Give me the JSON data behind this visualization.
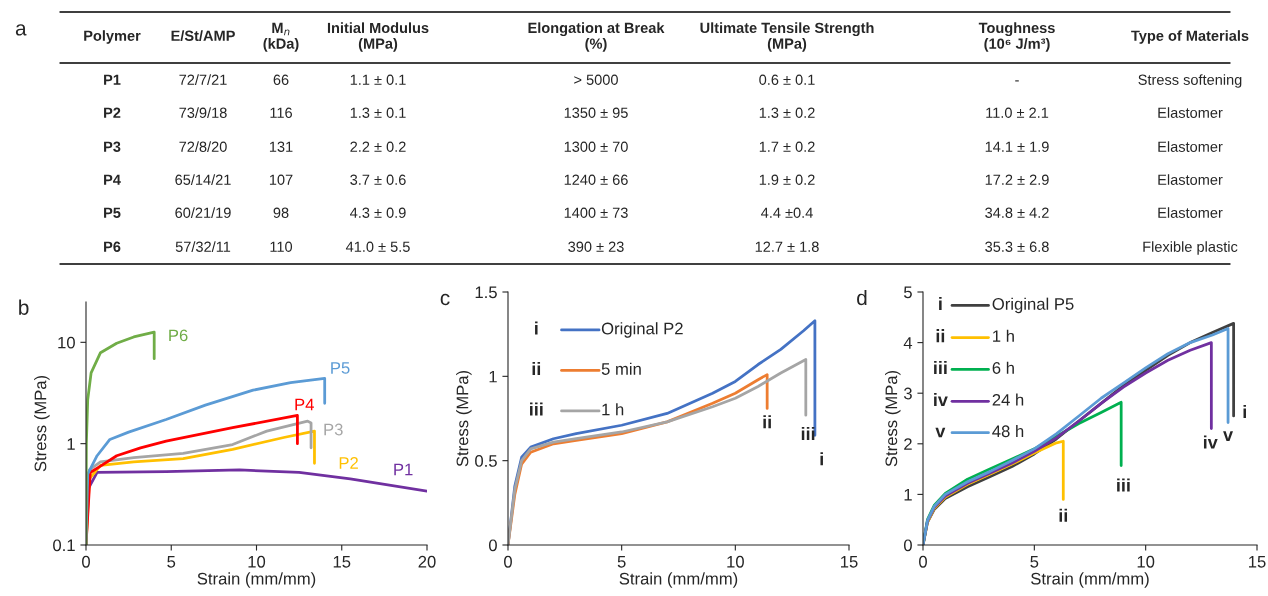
{
  "chart_data": [
    {
      "type": "other",
      "title": "a",
      "categories": [
        "Polymer",
        "E/St/AMP",
        "M$_{n}$\n(kDa)",
        "Initial Modulus\n(MPa)",
        "Elongation at Break\n(%)",
        "Ultimate Tensile Strength\n(MPa)",
        "Toughness\n(10⁶ J/m³)",
        "Type of Materials"
      ],
      "cell_labels": [
        [
          "P1",
          "72/7/21",
          "66",
          "1.1 ± 0.1",
          "> 5000",
          "0.6 ± 0.1",
          "-",
          "Stress softening"
        ],
        [
          "P2",
          "73/9/18",
          "116",
          "1.3 ± 0.1",
          "1350 ± 95",
          "1.3 ± 0.2",
          "11.0 ± 2.1",
          "Elastomer"
        ],
        [
          "P3",
          "72/8/20",
          "131",
          "2.2 ± 0.2",
          "1300 ± 70",
          "1.7 ± 0.2",
          "14.1 ± 1.9",
          "Elastomer"
        ],
        [
          "P4",
          "65/14/21",
          "107",
          "3.7 ± 0.6",
          "1240 ± 66",
          "1.9 ± 0.2",
          "17.2 ± 2.9",
          "Elastomer"
        ],
        [
          "P5",
          "60/21/19",
          "98",
          "4.3 ± 0.9",
          "1400 ± 73",
          "4.4 ±0.4",
          "34.8 ± 4.2",
          "Elastomer"
        ],
        [
          "P6",
          "57/32/11",
          "110",
          "41.0 ± 5.5",
          "390 ± 23",
          "12.7 ± 1.8",
          "35.3 ± 6.8",
          "Flexible plastic"
        ]
      ]
    },
    {
      "type": "line",
      "title": "b",
      "xlabel": "Strain (mm/mm)",
      "ylabel": "Stress (MPa)",
      "log": "y",
      "xlim": [
        0,
        20
      ],
      "xticks": [
        0,
        5,
        10,
        15,
        20
      ],
      "ylim": [
        0.1,
        25
      ],
      "yticks": [
        0.1,
        1,
        10
      ],
      "series": [
        {
          "name": "P1",
          "color": "#7030a0",
          "x": [
            0,
            0.1,
            0.65,
            4.7,
            9.0,
            12.5,
            15.5,
            20
          ],
          "values": [
            0.1,
            0.35,
            0.52,
            0.53,
            0.55,
            0.52,
            0.45,
            0.34
          ]
        },
        {
          "name": "P2",
          "color": "#ffc000",
          "x": [
            0,
            0.2,
            0.85,
            2.8,
            5.7,
            8.6,
            11.6,
            13.4,
            13.4
          ],
          "values": [
            0.1,
            0.45,
            0.61,
            0.66,
            0.71,
            0.88,
            1.15,
            1.33,
            0.64
          ]
        },
        {
          "name": "P3",
          "color": "#a5a5a5",
          "x": [
            0,
            0.2,
            0.85,
            2.8,
            5.7,
            8.6,
            10.6,
            13.0,
            13.2,
            13.2
          ],
          "values": [
            0.1,
            0.55,
            0.66,
            0.73,
            0.8,
            0.98,
            1.33,
            1.67,
            1.6,
            0.91
          ]
        },
        {
          "name": "P4",
          "color": "#ff0000",
          "x": [
            0,
            0.25,
            0.85,
            1.8,
            3.2,
            4.7,
            8.6,
            12.4,
            12.4
          ],
          "values": [
            0.1,
            0.52,
            0.6,
            0.76,
            0.91,
            1.06,
            1.44,
            1.9,
            1.0
          ]
        },
        {
          "name": "P5",
          "color": "#5b9bd5",
          "x": [
            0,
            0.1,
            0.65,
            1.4,
            2.5,
            4.7,
            7,
            9.8,
            12,
            14,
            14
          ],
          "values": [
            0.1,
            0.5,
            0.76,
            1.1,
            1.3,
            1.73,
            2.4,
            3.37,
            4.0,
            4.4,
            2.5
          ]
        },
        {
          "name": "P6",
          "color": "#70ad47",
          "x": [
            0,
            0.02,
            0.1,
            0.3,
            0.85,
            1.8,
            2.8,
            4.0,
            4.0
          ],
          "values": [
            0.1,
            1,
            2.7,
            5,
            7.9,
            9.8,
            11.3,
            12.6,
            6.9
          ]
        }
      ]
    },
    {
      "type": "line",
      "title": "c",
      "xlabel": "Strain (mm/mm)",
      "ylabel": "Stress (MPa)",
      "legend": "top left",
      "xlim": [
        0,
        15
      ],
      "xticks": [
        0,
        5,
        10,
        15
      ],
      "ylim": [
        0,
        1.5
      ],
      "yticks": [
        0,
        0.5,
        1,
        1.5
      ],
      "annotations": [
        "i",
        "ii",
        "iii",
        "i",
        "ii",
        "iii"
      ],
      "series": [
        {
          "name": "Original P2",
          "color": "#4472c4",
          "x": [
            0,
            0.3,
            0.6,
            1,
            2,
            3,
            5,
            7,
            9,
            10,
            11,
            12,
            13,
            13.5,
            13.5
          ],
          "values": [
            0,
            0.35,
            0.52,
            0.58,
            0.63,
            0.66,
            0.71,
            0.78,
            0.9,
            0.97,
            1.07,
            1.16,
            1.27,
            1.33,
            0.65
          ]
        },
        {
          "name": "5 min",
          "color": "#ed7d31",
          "x": [
            0,
            0.3,
            0.6,
            1,
            2,
            3,
            5,
            7,
            9,
            10,
            11,
            11.4,
            11.4
          ],
          "values": [
            0,
            0.3,
            0.48,
            0.55,
            0.6,
            0.62,
            0.66,
            0.73,
            0.84,
            0.9,
            0.98,
            1.01,
            0.81
          ]
        },
        {
          "name": "1 h",
          "color": "#a5a5a5",
          "x": [
            0,
            0.3,
            0.6,
            1,
            2,
            3,
            5,
            7,
            9,
            10,
            11,
            12,
            13.1,
            13.1
          ],
          "values": [
            0,
            0.33,
            0.5,
            0.57,
            0.61,
            0.63,
            0.67,
            0.73,
            0.82,
            0.87,
            0.94,
            1.02,
            1.1,
            0.77
          ]
        }
      ]
    },
    {
      "type": "line",
      "title": "d",
      "xlabel": "Strain (mm/mm)",
      "ylabel": "Stress (MPa)",
      "legend": "top left",
      "xlim": [
        0,
        15
      ],
      "xticks": [
        0,
        5,
        10,
        15
      ],
      "ylim": [
        0,
        5
      ],
      "yticks": [
        0,
        1,
        2,
        3,
        4,
        5
      ],
      "annotations": [
        "i",
        "ii",
        "iii",
        "iv",
        "v",
        "i",
        "ii",
        "iii",
        "iv",
        "v"
      ],
      "series": [
        {
          "name": "Original P5",
          "color": "#404040",
          "x": [
            0,
            0.2,
            0.5,
            1,
            2,
            3,
            4,
            5,
            6,
            7,
            8,
            9,
            10,
            11,
            12,
            13,
            13.95,
            13.95
          ],
          "values": [
            0,
            0.45,
            0.7,
            0.92,
            1.15,
            1.35,
            1.55,
            1.8,
            2.1,
            2.45,
            2.8,
            3.15,
            3.45,
            3.75,
            4.0,
            4.2,
            4.38,
            2.55
          ]
        },
        {
          "name": "1 h",
          "color": "#ffc000",
          "x": [
            0,
            0.2,
            0.5,
            1,
            2,
            3,
            4,
            5,
            6,
            6.3,
            6.3
          ],
          "values": [
            0,
            0.45,
            0.72,
            0.95,
            1.2,
            1.4,
            1.6,
            1.82,
            2.02,
            2.05,
            0.9
          ]
        },
        {
          "name": "6 h",
          "color": "#00b050",
          "x": [
            0,
            0.2,
            0.5,
            1,
            2,
            3,
            4,
            5,
            6,
            7,
            8,
            8.9,
            8.9
          ],
          "values": [
            0,
            0.5,
            0.78,
            1.02,
            1.3,
            1.5,
            1.7,
            1.9,
            2.15,
            2.4,
            2.62,
            2.82,
            1.57
          ]
        },
        {
          "name": "24 h",
          "color": "#7030a0",
          "x": [
            0,
            0.2,
            0.5,
            1,
            2,
            3,
            4,
            5,
            6,
            7,
            8,
            9,
            10,
            11,
            12,
            12.95,
            12.95
          ],
          "values": [
            0,
            0.47,
            0.74,
            0.97,
            1.22,
            1.42,
            1.62,
            1.85,
            2.12,
            2.45,
            2.8,
            3.12,
            3.4,
            3.65,
            3.85,
            4.0,
            2.3
          ]
        },
        {
          "name": "48 h",
          "color": "#5b9bd5",
          "x": [
            0,
            0.2,
            0.5,
            1,
            2,
            3,
            4,
            5,
            6,
            7,
            8,
            9,
            10,
            11,
            12,
            13,
            13.7,
            13.7
          ],
          "values": [
            0,
            0.48,
            0.76,
            1.0,
            1.25,
            1.45,
            1.67,
            1.9,
            2.2,
            2.55,
            2.9,
            3.2,
            3.5,
            3.78,
            4.0,
            4.15,
            4.28,
            2.42
          ]
        }
      ]
    }
  ]
}
